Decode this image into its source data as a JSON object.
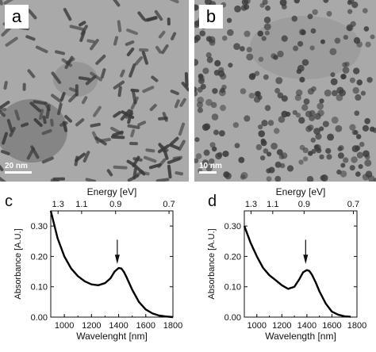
{
  "panels": {
    "a": {
      "label": "a",
      "scale_bar": "20 nm"
    },
    "b": {
      "label": "b",
      "scale_bar": "10 nm"
    },
    "c": {
      "label": "c"
    },
    "d": {
      "label": "d"
    }
  },
  "colors": {
    "tem_background": "#a9a9a9",
    "particle": "#3a3a3a",
    "curve": "#000000"
  },
  "chart_data": [
    {
      "panel": "c",
      "type": "line",
      "xlabel": "Wavelenght [nm]",
      "ylabel": "Absorbance [A.U.]",
      "top_axis_label": "Energy [eV]",
      "xlim": [
        900,
        1800
      ],
      "ylim": [
        0,
        0.35
      ],
      "x_ticks": [
        1000,
        1200,
        1400,
        1600,
        1800
      ],
      "y_ticks": [
        0.0,
        0.1,
        0.2,
        0.3
      ],
      "x_tick_labels": [
        "1000",
        "1200",
        "1400",
        "1600",
        "1800"
      ],
      "y_tick_labels": [
        "0.00",
        "0.10",
        "0.20",
        "0.30"
      ],
      "top_ticks": [
        1.3,
        1.1,
        0.9,
        0.7
      ],
      "top_tick_labels": [
        "1.3",
        "1.1",
        "0.9",
        "0.7"
      ],
      "arrow_at_x": 1390,
      "series": [
        {
          "x": [
            900,
            950,
            1000,
            1050,
            1100,
            1150,
            1200,
            1250,
            1300,
            1340,
            1370,
            1400,
            1420,
            1440,
            1460,
            1500,
            1550,
            1600,
            1650,
            1700,
            1750,
            1800
          ],
          "y": [
            0.35,
            0.26,
            0.2,
            0.16,
            0.135,
            0.118,
            0.108,
            0.105,
            0.112,
            0.128,
            0.15,
            0.162,
            0.16,
            0.148,
            0.13,
            0.09,
            0.05,
            0.025,
            0.012,
            0.005,
            0.002,
            0.0
          ]
        }
      ]
    },
    {
      "panel": "d",
      "type": "line",
      "xlabel": "Wavelength [nm]",
      "ylabel": "Absorbance [A.U.]",
      "top_axis_label": "Energy [eV]",
      "xlim": [
        900,
        1800
      ],
      "ylim": [
        0,
        0.35
      ],
      "x_ticks": [
        1000,
        1200,
        1400,
        1600,
        1800
      ],
      "y_ticks": [
        0.0,
        0.1,
        0.2,
        0.3
      ],
      "x_tick_labels": [
        "1000",
        "1200",
        "1400",
        "1600",
        "1800"
      ],
      "y_tick_labels": [
        "0.00",
        "0.10",
        "0.20",
        "0.30"
      ],
      "top_ticks": [
        1.3,
        1.1,
        0.9,
        0.7
      ],
      "top_tick_labels": [
        "1.3",
        "1.1",
        "0.9",
        "0.7"
      ],
      "arrow_at_x": 1390,
      "series": [
        {
          "x": [
            900,
            950,
            1000,
            1050,
            1100,
            1150,
            1200,
            1250,
            1300,
            1340,
            1370,
            1400,
            1420,
            1440,
            1470,
            1500,
            1550,
            1600,
            1650,
            1700,
            1750
          ],
          "y": [
            0.3,
            0.245,
            0.2,
            0.162,
            0.138,
            0.122,
            0.105,
            0.093,
            0.1,
            0.125,
            0.148,
            0.155,
            0.152,
            0.14,
            0.115,
            0.085,
            0.045,
            0.018,
            0.008,
            0.003,
            0.001
          ]
        }
      ]
    }
  ]
}
